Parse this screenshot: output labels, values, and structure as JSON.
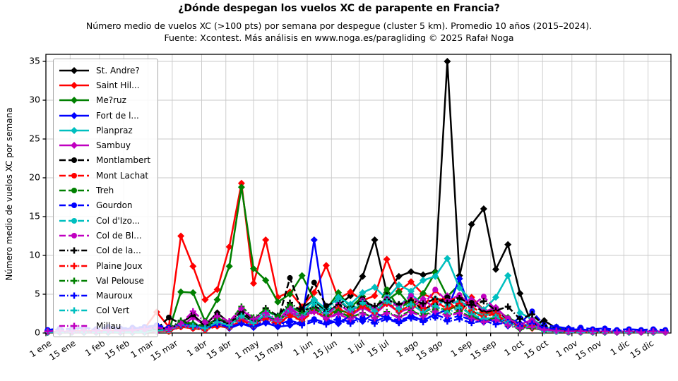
{
  "figure": {
    "title": "¿Dónde despegan los vuelos XC de parapente en Francia?",
    "subtitle1": "Número medio de vuelos XC (>100 pts) por semana por despegue (cluster 5 km). Promedio 10 años (2015–2024).",
    "subtitle2": "Fuente: Xcontest. Más análisis en www.noga.es/paragliding © 2025 Rafał Noga"
  },
  "chart_data": {
    "type": "line",
    "title": "¿Dónde despegan los vuelos XC de parapente en Francia?",
    "xlabel": "",
    "ylabel": "Número medio de vuelos XC por semana",
    "ylim": [
      0,
      35.9
    ],
    "yticks": [
      0,
      5,
      10,
      15,
      20,
      25,
      30,
      35
    ],
    "grid": true,
    "legend_position": "upper-left",
    "points_per_series": 52,
    "x_is_week_of_year": true,
    "xticks": [
      {
        "label": "1 ene",
        "day": 1
      },
      {
        "label": "15 ene",
        "day": 15
      },
      {
        "label": "1 feb",
        "day": 32
      },
      {
        "label": "15 feb",
        "day": 46
      },
      {
        "label": "1 mar",
        "day": 60
      },
      {
        "label": "15 mar",
        "day": 74
      },
      {
        "label": "1 abr",
        "day": 91
      },
      {
        "label": "15 abr",
        "day": 105
      },
      {
        "label": "1 may",
        "day": 121
      },
      {
        "label": "15 may",
        "day": 135
      },
      {
        "label": "1 jun",
        "day": 152
      },
      {
        "label": "15 jun",
        "day": 166
      },
      {
        "label": "1 jul",
        "day": 182
      },
      {
        "label": "15 jul",
        "day": 196
      },
      {
        "label": "1 ago",
        "day": 213
      },
      {
        "label": "15 ago",
        "day": 227
      },
      {
        "label": "1 sep",
        "day": 244
      },
      {
        "label": "15 sep",
        "day": 258
      },
      {
        "label": "1 oct",
        "day": 274
      },
      {
        "label": "15 oct",
        "day": 288
      },
      {
        "label": "1 nov",
        "day": 305
      },
      {
        "label": "15 nov",
        "day": 319
      },
      {
        "label": "1 dic",
        "day": 335
      },
      {
        "label": "15 dic",
        "day": 349
      }
    ],
    "series": [
      {
        "name": "St. Andre?",
        "color": "#000000",
        "linestyle": "solid",
        "marker": "diamond",
        "weekly_values": [
          0.1,
          0.1,
          0.2,
          0.1,
          0.2,
          0.2,
          0.1,
          0.2,
          0.4,
          0.8,
          0.5,
          1.3,
          2.3,
          1.0,
          2.6,
          1.3,
          1.8,
          1.1,
          2.2,
          1.4,
          2.9,
          3.3,
          4.2,
          2.7,
          3.6,
          4.8,
          7.3,
          12.0,
          5.2,
          7.3,
          7.9,
          7.5,
          7.9,
          35.0,
          7.4,
          14.0,
          16.0,
          8.2,
          11.4,
          5.1,
          1.0,
          1.6,
          0.6,
          0.6,
          0.3,
          0.2,
          0.1,
          0.1,
          0.1,
          0.1,
          0.1,
          0.1
        ]
      },
      {
        "name": "Saint Hil...",
        "color": "#ff0000",
        "linestyle": "solid",
        "marker": "diamond",
        "weekly_values": [
          0.2,
          0.1,
          0.3,
          0.2,
          0.3,
          0.2,
          0.4,
          0.3,
          0.6,
          2.7,
          0.8,
          12.5,
          8.6,
          4.3,
          5.6,
          11.1,
          19.3,
          6.4,
          12.0,
          4.6,
          5.3,
          3.4,
          5.2,
          8.7,
          4.4,
          5.3,
          4.2,
          4.8,
          9.5,
          5.4,
          6.6,
          5.0,
          4.4,
          4.3,
          2.5,
          4.6,
          3.0,
          2.2,
          1.4,
          0.9,
          0.6,
          0.4,
          0.5,
          0.3,
          0.2,
          0.1,
          0.1,
          0.1,
          0.1,
          0.1,
          0.1,
          0.1
        ]
      },
      {
        "name": "Me?ruz",
        "color": "#008000",
        "linestyle": "solid",
        "marker": "diamond",
        "weekly_values": [
          0.1,
          0.1,
          0.1,
          0.1,
          0.1,
          0.1,
          0.1,
          0.1,
          0.1,
          0.4,
          0.2,
          5.3,
          5.2,
          1.5,
          4.3,
          8.6,
          18.8,
          8.3,
          6.8,
          4.0,
          5.0,
          7.4,
          4.3,
          3.0,
          5.2,
          3.3,
          4.7,
          2.6,
          4.2,
          5.3,
          3.4,
          5.1,
          7.8,
          4.7,
          6.3,
          2.8,
          2.2,
          3.0,
          2.0,
          1.2,
          0.7,
          0.4,
          0.8,
          0.2,
          0.1,
          0.1,
          0.1,
          0.1,
          0.1,
          0.1,
          0.1,
          0.1
        ]
      },
      {
        "name": "Fort de l...",
        "color": "#0000ff",
        "linestyle": "solid",
        "marker": "diamond",
        "weekly_values": [
          0.1,
          0.2,
          0.1,
          0.1,
          0.2,
          0.1,
          0.2,
          0.1,
          0.3,
          0.6,
          0.3,
          0.9,
          0.7,
          0.5,
          1.0,
          0.6,
          1.2,
          0.7,
          1.3,
          0.8,
          1.0,
          1.5,
          12.0,
          1.8,
          1.2,
          2.3,
          1.5,
          2.6,
          1.9,
          1.4,
          2.2,
          1.6,
          2.4,
          3.0,
          7.0,
          2.4,
          1.4,
          2.1,
          0.9,
          2.0,
          0.9,
          0.4,
          0.3,
          0.2,
          0.1,
          0.1,
          0.1,
          0.1,
          0.1,
          0.1,
          0.1,
          0.1
        ]
      },
      {
        "name": "Planpraz",
        "color": "#00bfbf",
        "linestyle": "solid",
        "marker": "diamond",
        "weekly_values": [
          0.1,
          0.1,
          0.1,
          0.1,
          0.1,
          0.1,
          0.1,
          0.1,
          0.2,
          0.4,
          0.3,
          0.8,
          1.2,
          0.7,
          1.4,
          1.0,
          2.4,
          1.6,
          2.8,
          2.2,
          3.4,
          2.6,
          4.3,
          3.1,
          4.6,
          3.7,
          5.2,
          5.9,
          4.4,
          6.2,
          5.4,
          6.8,
          7.3,
          9.6,
          5.8,
          4.2,
          3.0,
          4.6,
          7.4,
          2.6,
          1.8,
          0.8,
          0.4,
          0.2,
          0.1,
          0.1,
          0.1,
          0.1,
          0.1,
          0.1,
          0.1,
          0.1
        ]
      },
      {
        "name": "Sambuy",
        "color": "#c000c0",
        "linestyle": "solid",
        "marker": "diamond",
        "weekly_values": [
          0.1,
          0.1,
          0.2,
          0.1,
          0.1,
          0.2,
          0.1,
          0.1,
          0.2,
          0.4,
          0.3,
          0.8,
          2.0,
          1.0,
          1.8,
          1.2,
          3.1,
          1.5,
          2.3,
          1.6,
          3.3,
          2.1,
          2.8,
          1.9,
          2.6,
          2.2,
          3.3,
          2.4,
          3.8,
          2.7,
          3.2,
          4.4,
          3.1,
          4.8,
          3.4,
          4.3,
          2.7,
          3.3,
          1.8,
          1.1,
          1.7,
          0.6,
          0.3,
          0.2,
          0.2,
          0.2,
          0.2,
          0.2,
          0.2,
          0.2,
          0.2,
          0.2
        ]
      },
      {
        "name": "Montlambert",
        "color": "#000000",
        "linestyle": "dashed",
        "marker": "circle",
        "weekly_values": [
          0.1,
          0.1,
          0.1,
          0.1,
          0.1,
          0.1,
          0.1,
          0.1,
          0.1,
          0.5,
          2.0,
          1.2,
          2.4,
          0.8,
          1.7,
          1.1,
          2.6,
          1.3,
          2.2,
          1.5,
          7.1,
          3.0,
          6.5,
          3.5,
          4.2,
          3.0,
          4.4,
          3.2,
          4.5,
          3.6,
          4.2,
          3.0,
          3.8,
          4.6,
          3.2,
          3.9,
          2.6,
          3.0,
          1.7,
          1.0,
          1.3,
          0.5,
          0.3,
          0.1,
          0.1,
          0.1,
          0.1,
          0.1,
          0.1,
          0.1,
          0.1,
          0.1
        ]
      },
      {
        "name": "Mont Lachat",
        "color": "#ff0000",
        "linestyle": "dashed",
        "marker": "circle",
        "weekly_values": [
          0.1,
          0.1,
          0.1,
          0.1,
          0.1,
          0.1,
          0.1,
          0.1,
          0.1,
          0.3,
          0.2,
          0.8,
          0.6,
          0.4,
          0.9,
          0.7,
          1.5,
          0.9,
          1.6,
          1.1,
          2.2,
          1.6,
          2.8,
          2.0,
          3.1,
          2.4,
          3.6,
          2.7,
          3.9,
          3.0,
          4.3,
          3.3,
          5.5,
          4.0,
          4.8,
          3.4,
          2.4,
          2.8,
          1.5,
          0.8,
          1.1,
          0.4,
          0.2,
          0.1,
          0.1,
          0.1,
          0.1,
          0.1,
          0.1,
          0.1,
          0.1,
          0.1
        ]
      },
      {
        "name": "Treh",
        "color": "#008000",
        "linestyle": "dashed",
        "marker": "circle",
        "weekly_values": [
          0.1,
          0.1,
          0.1,
          0.1,
          0.1,
          0.1,
          0.1,
          0.1,
          0.1,
          0.3,
          0.5,
          1.4,
          1.1,
          0.6,
          1.3,
          0.9,
          2.1,
          1.2,
          2.4,
          1.5,
          2.9,
          2.0,
          3.4,
          2.3,
          3.0,
          2.5,
          3.8,
          2.9,
          5.6,
          3.2,
          4.1,
          2.6,
          3.4,
          2.9,
          3.7,
          2.2,
          1.6,
          2.0,
          1.1,
          0.6,
          0.9,
          0.3,
          0.2,
          0.1,
          0.1,
          0.1,
          0.1,
          0.1,
          0.1,
          0.1,
          0.1,
          0.1
        ]
      },
      {
        "name": "Gourdon",
        "color": "#0000ff",
        "linestyle": "dashed",
        "marker": "circle",
        "weekly_values": [
          0.4,
          0.6,
          0.5,
          0.7,
          0.5,
          0.8,
          0.6,
          0.7,
          0.8,
          1.0,
          0.7,
          1.2,
          0.9,
          0.8,
          1.3,
          0.9,
          1.4,
          1.0,
          1.5,
          1.1,
          1.6,
          1.2,
          1.8,
          1.3,
          1.9,
          1.4,
          2.0,
          1.5,
          2.1,
          1.6,
          2.2,
          1.7,
          2.4,
          1.8,
          2.2,
          1.7,
          2.0,
          1.4,
          1.8,
          1.2,
          2.8,
          1.0,
          0.8,
          0.6,
          0.7,
          0.5,
          0.6,
          0.4,
          0.5,
          0.4,
          0.5,
          0.4
        ]
      },
      {
        "name": "Col d'Izo...",
        "color": "#00bfbf",
        "linestyle": "dashed",
        "marker": "circle",
        "weekly_values": [
          0.2,
          0.1,
          0.2,
          0.1,
          0.2,
          0.2,
          0.1,
          0.2,
          0.3,
          0.4,
          0.3,
          0.9,
          0.7,
          0.5,
          1.1,
          0.8,
          1.7,
          1.0,
          1.9,
          1.3,
          2.5,
          1.8,
          3.2,
          2.2,
          3.6,
          2.6,
          4.1,
          3.0,
          4.6,
          3.4,
          5.0,
          3.7,
          4.4,
          3.5,
          4.2,
          3.0,
          2.2,
          2.6,
          1.4,
          0.8,
          1.0,
          0.4,
          0.2,
          0.1,
          0.1,
          0.1,
          0.1,
          0.1,
          0.1,
          0.1,
          0.1,
          0.1
        ]
      },
      {
        "name": "Col de Bl...",
        "color": "#c000c0",
        "linestyle": "dashed",
        "marker": "circle",
        "weekly_values": [
          0.1,
          0.1,
          0.1,
          0.1,
          0.1,
          0.1,
          0.1,
          0.1,
          0.1,
          0.2,
          0.4,
          1.0,
          0.8,
          0.5,
          1.2,
          0.9,
          1.9,
          1.1,
          2.0,
          1.4,
          2.7,
          1.9,
          3.3,
          2.3,
          3.7,
          2.7,
          4.2,
          3.1,
          4.4,
          3.3,
          4.8,
          3.6,
          5.6,
          4.1,
          4.9,
          3.5,
          4.7,
          3.0,
          1.9,
          1.0,
          1.3,
          0.5,
          0.3,
          0.1,
          0.1,
          0.1,
          0.1,
          0.1,
          0.1,
          0.1,
          0.1,
          0.1
        ]
      },
      {
        "name": "Col de la...",
        "color": "#000000",
        "linestyle": "dashdot",
        "marker": "plus",
        "weekly_values": [
          0.1,
          0.1,
          0.1,
          0.1,
          0.1,
          0.1,
          0.1,
          0.1,
          0.1,
          0.4,
          0.6,
          1.5,
          1.2,
          0.9,
          1.8,
          1.3,
          2.8,
          1.7,
          3.2,
          2.2,
          3.9,
          2.8,
          3.4,
          2.9,
          3.6,
          3.1,
          4.0,
          3.5,
          4.3,
          3.7,
          4.2,
          3.8,
          4.4,
          3.9,
          4.5,
          3.6,
          4.1,
          2.9,
          3.4,
          1.8,
          2.4,
          0.9,
          0.5,
          0.2,
          0.1,
          0.1,
          0.1,
          0.1,
          0.1,
          0.1,
          0.1,
          0.1
        ]
      },
      {
        "name": "Plaine Joux",
        "color": "#ff0000",
        "linestyle": "dashdot",
        "marker": "plus",
        "weekly_values": [
          0.1,
          0.1,
          0.1,
          0.1,
          0.1,
          0.1,
          0.1,
          0.1,
          0.1,
          0.2,
          0.3,
          0.8,
          0.6,
          0.4,
          0.9,
          0.7,
          1.6,
          1.0,
          1.8,
          1.2,
          2.3,
          1.7,
          2.9,
          2.0,
          3.2,
          2.3,
          3.5,
          2.6,
          3.8,
          2.8,
          3.6,
          2.9,
          4.1,
          3.1,
          3.8,
          2.7,
          2.1,
          2.5,
          1.3,
          0.7,
          0.9,
          0.3,
          0.2,
          0.1,
          0.1,
          0.1,
          0.1,
          0.1,
          0.1,
          0.1,
          0.1,
          0.1
        ]
      },
      {
        "name": "Val Pelouse",
        "color": "#008000",
        "linestyle": "dashdot",
        "marker": "plus",
        "weekly_values": [
          0.1,
          0.1,
          0.1,
          0.1,
          0.1,
          0.1,
          0.1,
          0.1,
          0.1,
          0.3,
          0.5,
          1.6,
          1.2,
          0.8,
          1.9,
          1.4,
          3.4,
          2.0,
          3.0,
          2.1,
          3.6,
          2.5,
          3.1,
          2.2,
          2.8,
          2.0,
          2.6,
          1.9,
          2.7,
          2.1,
          2.9,
          2.2,
          3.0,
          2.3,
          2.8,
          2.0,
          1.5,
          1.8,
          1.0,
          0.5,
          0.7,
          0.3,
          0.2,
          0.1,
          0.1,
          0.1,
          0.1,
          0.1,
          0.1,
          0.1,
          0.1,
          0.1
        ]
      },
      {
        "name": "Mauroux",
        "color": "#0000ff",
        "linestyle": "dashdot",
        "marker": "plus",
        "weekly_values": [
          0.3,
          0.5,
          0.4,
          0.6,
          0.4,
          0.7,
          0.5,
          0.6,
          0.7,
          0.9,
          0.6,
          1.0,
          0.8,
          0.7,
          1.1,
          0.8,
          1.2,
          0.9,
          1.3,
          0.9,
          1.4,
          1.0,
          1.5,
          1.1,
          1.6,
          1.2,
          1.7,
          1.2,
          1.8,
          1.3,
          1.9,
          1.4,
          2.0,
          1.5,
          1.8,
          1.3,
          1.6,
          1.1,
          1.4,
          0.9,
          1.2,
          0.7,
          0.5,
          0.4,
          0.5,
          0.3,
          0.4,
          0.3,
          0.4,
          0.3,
          0.3,
          0.3
        ]
      },
      {
        "name": "Col Vert",
        "color": "#00bfbf",
        "linestyle": "dashdot",
        "marker": "plus",
        "weekly_values": [
          0.1,
          0.1,
          0.1,
          0.1,
          0.1,
          0.1,
          0.1,
          0.1,
          0.1,
          0.3,
          0.4,
          1.1,
          0.9,
          0.6,
          1.4,
          1.0,
          2.2,
          1.3,
          2.4,
          1.6,
          3.0,
          2.1,
          3.8,
          2.6,
          4.4,
          3.0,
          3.9,
          2.8,
          4.1,
          3.1,
          3.7,
          2.7,
          3.5,
          2.6,
          3.3,
          2.4,
          1.8,
          2.1,
          1.2,
          0.6,
          0.8,
          0.3,
          0.2,
          0.1,
          0.1,
          0.1,
          0.1,
          0.1,
          0.1,
          0.1,
          0.1,
          0.1
        ]
      },
      {
        "name": "Millau",
        "color": "#c000c0",
        "linestyle": "dashdot",
        "marker": "plus",
        "weekly_values": [
          0.2,
          0.3,
          0.2,
          0.4,
          0.3,
          0.4,
          0.3,
          0.4,
          0.5,
          0.7,
          0.5,
          1.2,
          2.8,
          1.4,
          2.2,
          1.5,
          3.2,
          1.8,
          2.6,
          1.7,
          3.1,
          2.0,
          2.7,
          1.9,
          2.4,
          1.8,
          2.5,
          1.9,
          2.6,
          2.0,
          2.7,
          2.1,
          2.8,
          2.2,
          2.6,
          1.9,
          1.4,
          1.7,
          1.0,
          0.6,
          0.8,
          0.4,
          0.3,
          0.2,
          0.2,
          0.2,
          0.2,
          0.1,
          0.2,
          0.1,
          0.2,
          0.1
        ]
      }
    ]
  }
}
